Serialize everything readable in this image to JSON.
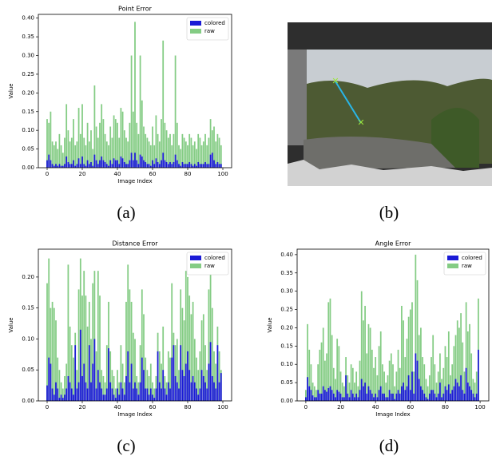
{
  "chart_data": [
    {
      "type": "bar",
      "title": "Point Error",
      "x_label": "Image Index",
      "y_label": "Value",
      "legend": "upper right",
      "x": [
        0,
        1,
        2,
        3,
        4,
        5,
        6,
        7,
        8,
        9,
        10,
        11,
        12,
        13,
        14,
        15,
        16,
        17,
        18,
        19,
        20,
        21,
        22,
        23,
        24,
        25,
        26,
        27,
        28,
        29,
        30,
        31,
        32,
        33,
        34,
        35,
        36,
        37,
        38,
        39,
        40,
        41,
        42,
        43,
        44,
        45,
        46,
        47,
        48,
        49,
        50,
        51,
        52,
        53,
        54,
        55,
        56,
        57,
        58,
        59,
        60,
        61,
        62,
        63,
        64,
        65,
        66,
        67,
        68,
        69,
        70,
        71,
        72,
        73,
        74,
        75,
        76,
        77,
        78,
        79,
        80,
        81,
        82,
        83,
        84,
        85,
        86,
        87,
        88,
        89,
        90,
        91,
        92,
        93,
        94,
        95,
        96,
        97,
        98,
        99
      ],
      "xlim": [
        -5,
        105
      ],
      "xticks": [
        0,
        20,
        40,
        60,
        80,
        100
      ],
      "ylim": [
        0,
        0.41
      ],
      "yticks": [
        {
          "value": 0,
          "label": "0.00"
        },
        {
          "value": 0.05,
          "label": "0.05"
        },
        {
          "value": 0.1,
          "label": "0.10"
        },
        {
          "value": 0.15,
          "label": "0.15"
        },
        {
          "value": 0.2,
          "label": "0.20"
        },
        {
          "value": 0.25,
          "label": "0.25"
        },
        {
          "value": 0.3,
          "label": "0.30"
        },
        {
          "value": 0.35,
          "label": "0.35"
        },
        {
          "value": 0.4,
          "label": "0.40"
        }
      ],
      "series": [
        {
          "name": "colored",
          "color": "#1a1ad6",
          "values": [
            0.02,
            0.035,
            0.02,
            0.01,
            0.005,
            0.01,
            0.005,
            0.01,
            0.005,
            0.005,
            0.01,
            0.03,
            0.015,
            0.01,
            0.01,
            0.02,
            0.005,
            0.01,
            0.025,
            0.01,
            0.03,
            0.01,
            0.005,
            0.02,
            0.01,
            0.015,
            0.005,
            0.035,
            0.02,
            0.01,
            0.02,
            0.03,
            0.02,
            0.015,
            0.01,
            0.005,
            0.02,
            0.01,
            0.025,
            0.02,
            0.02,
            0.01,
            0.03,
            0.025,
            0.015,
            0.01,
            0.01,
            0.02,
            0.04,
            0.02,
            0.04,
            0.02,
            0.01,
            0.035,
            0.03,
            0.02,
            0.015,
            0.01,
            0.01,
            0.005,
            0.02,
            0.01,
            0.025,
            0.015,
            0.01,
            0.02,
            0.04,
            0.02,
            0.015,
            0.01,
            0.015,
            0.01,
            0.015,
            0.035,
            0.02,
            0.01,
            0.005,
            0.015,
            0.01,
            0.01,
            0.01,
            0.015,
            0.01,
            0.005,
            0.01,
            0.005,
            0.015,
            0.01,
            0.01,
            0.01,
            0.015,
            0.01,
            0.01,
            0.035,
            0.04,
            0.02,
            0.01,
            0.015,
            0.01,
            0.01
          ]
        },
        {
          "name": "raw",
          "color": "#84cc84",
          "values": [
            0.13,
            0.12,
            0.15,
            0.07,
            0.06,
            0.07,
            0.05,
            0.09,
            0.06,
            0.04,
            0.08,
            0.17,
            0.1,
            0.07,
            0.08,
            0.13,
            0.06,
            0.07,
            0.16,
            0.09,
            0.17,
            0.08,
            0.06,
            0.12,
            0.07,
            0.1,
            0.05,
            0.22,
            0.11,
            0.08,
            0.12,
            0.17,
            0.13,
            0.09,
            0.07,
            0.06,
            0.11,
            0.08,
            0.14,
            0.13,
            0.12,
            0.08,
            0.16,
            0.15,
            0.1,
            0.08,
            0.07,
            0.12,
            0.3,
            0.15,
            0.39,
            0.12,
            0.09,
            0.3,
            0.18,
            0.11,
            0.09,
            0.08,
            0.07,
            0.06,
            0.11,
            0.06,
            0.14,
            0.09,
            0.07,
            0.13,
            0.34,
            0.12,
            0.1,
            0.08,
            0.09,
            0.06,
            0.09,
            0.3,
            0.12,
            0.06,
            0.05,
            0.09,
            0.08,
            0.07,
            0.06,
            0.09,
            0.08,
            0.06,
            0.07,
            0.05,
            0.09,
            0.08,
            0.06,
            0.07,
            0.09,
            0.06,
            0.08,
            0.13,
            0.1,
            0.11,
            0.07,
            0.09,
            0.08,
            0.06
          ]
        }
      ]
    },
    {
      "type": "bar",
      "title": "Distance Error",
      "x_label": "Image Index",
      "y_label": "Value",
      "legend": "upper right",
      "x": [
        0,
        1,
        2,
        3,
        4,
        5,
        6,
        7,
        8,
        9,
        10,
        11,
        12,
        13,
        14,
        15,
        16,
        17,
        18,
        19,
        20,
        21,
        22,
        23,
        24,
        25,
        26,
        27,
        28,
        29,
        30,
        31,
        32,
        33,
        34,
        35,
        36,
        37,
        38,
        39,
        40,
        41,
        42,
        43,
        44,
        45,
        46,
        47,
        48,
        49,
        50,
        51,
        52,
        53,
        54,
        55,
        56,
        57,
        58,
        59,
        60,
        61,
        62,
        63,
        64,
        65,
        66,
        67,
        68,
        69,
        70,
        71,
        72,
        73,
        74,
        75,
        76,
        77,
        78,
        79,
        80,
        81,
        82,
        83,
        84,
        85,
        86,
        87,
        88,
        89,
        90,
        91,
        92,
        93,
        94,
        95,
        96,
        97,
        98,
        99
      ],
      "xlim": [
        -5,
        105
      ],
      "xticks": [
        0,
        20,
        40,
        60,
        80,
        100
      ],
      "ylim": [
        0,
        0.245
      ],
      "yticks": [
        {
          "value": 0,
          "label": "0.00"
        },
        {
          "value": 0.05,
          "label": "0.05"
        },
        {
          "value": 0.1,
          "label": "0.10"
        },
        {
          "value": 0.15,
          "label": "0.15"
        },
        {
          "value": 0.2,
          "label": "0.20"
        }
      ],
      "series": [
        {
          "name": "colored",
          "color": "#1a1ad6",
          "values": [
            0.025,
            0.07,
            0.06,
            0.02,
            0.01,
            0.03,
            0.02,
            0.005,
            0.01,
            0.005,
            0.01,
            0.02,
            0.04,
            0.03,
            0.02,
            0.01,
            0.09,
            0.02,
            0.03,
            0.115,
            0.04,
            0.06,
            0.03,
            0.02,
            0.09,
            0.03,
            0.06,
            0.1,
            0.02,
            0.05,
            0.03,
            0.02,
            0.01,
            0.01,
            0.02,
            0.085,
            0.03,
            0.02,
            0.01,
            0.005,
            0.02,
            0.01,
            0.03,
            0.02,
            0.01,
            0.04,
            0.08,
            0.03,
            0.06,
            0.02,
            0.03,
            0.02,
            0.01,
            0.03,
            0.07,
            0.05,
            0.02,
            0.02,
            0.01,
            0.02,
            0.01,
            0.005,
            0.02,
            0.08,
            0.03,
            0.02,
            0.05,
            0.02,
            0.01,
            0.03,
            0.02,
            0.07,
            0.09,
            0.04,
            0.03,
            0.02,
            0.09,
            0.05,
            0.04,
            0.06,
            0.08,
            0.05,
            0.03,
            0.04,
            0.03,
            0.02,
            0.01,
            0.02,
            0.05,
            0.04,
            0.03,
            0.02,
            0.06,
            0.095,
            0.04,
            0.03,
            0.02,
            0.09,
            0.03,
            0.045
          ]
        },
        {
          "name": "raw",
          "color": "#84cc84",
          "values": [
            0.19,
            0.23,
            0.15,
            0.16,
            0.15,
            0.13,
            0.07,
            0.05,
            0.03,
            0.02,
            0.04,
            0.06,
            0.22,
            0.12,
            0.09,
            0.07,
            0.11,
            0.05,
            0.18,
            0.23,
            0.17,
            0.21,
            0.17,
            0.12,
            0.16,
            0.1,
            0.19,
            0.21,
            0.08,
            0.21,
            0.17,
            0.05,
            0.04,
            0.03,
            0.09,
            0.16,
            0.08,
            0.05,
            0.04,
            0.02,
            0.05,
            0.03,
            0.09,
            0.06,
            0.03,
            0.16,
            0.22,
            0.18,
            0.16,
            0.11,
            0.1,
            0.04,
            0.03,
            0.09,
            0.18,
            0.14,
            0.07,
            0.05,
            0.04,
            0.06,
            0.03,
            0.02,
            0.04,
            0.11,
            0.08,
            0.06,
            0.12,
            0.04,
            0.03,
            0.08,
            0.07,
            0.19,
            0.11,
            0.09,
            0.1,
            0.05,
            0.18,
            0.15,
            0.13,
            0.21,
            0.2,
            0.17,
            0.14,
            0.16,
            0.1,
            0.07,
            0.05,
            0.08,
            0.13,
            0.14,
            0.09,
            0.05,
            0.18,
            0.22,
            0.15,
            0.08,
            0.06,
            0.12,
            0.08,
            0.05
          ]
        }
      ]
    },
    {
      "type": "bar",
      "title": "Angle Error",
      "x_label": "Image Index",
      "y_label": "Value",
      "legend": "upper right",
      "x": [
        0,
        1,
        2,
        3,
        4,
        5,
        6,
        7,
        8,
        9,
        10,
        11,
        12,
        13,
        14,
        15,
        16,
        17,
        18,
        19,
        20,
        21,
        22,
        23,
        24,
        25,
        26,
        27,
        28,
        29,
        30,
        31,
        32,
        33,
        34,
        35,
        36,
        37,
        38,
        39,
        40,
        41,
        42,
        43,
        44,
        45,
        46,
        47,
        48,
        49,
        50,
        51,
        52,
        53,
        54,
        55,
        56,
        57,
        58,
        59,
        60,
        61,
        62,
        63,
        64,
        65,
        66,
        67,
        68,
        69,
        70,
        71,
        72,
        73,
        74,
        75,
        76,
        77,
        78,
        79,
        80,
        81,
        82,
        83,
        84,
        85,
        86,
        87,
        88,
        89,
        90,
        91,
        92,
        93,
        94,
        95,
        96,
        97,
        98,
        99
      ],
      "xlim": [
        -5,
        105
      ],
      "xticks": [
        0,
        20,
        40,
        60,
        80,
        100
      ],
      "ylim": [
        0,
        0.415
      ],
      "yticks": [
        {
          "value": 0,
          "label": "0.00"
        },
        {
          "value": 0.05,
          "label": "0.05"
        },
        {
          "value": 0.1,
          "label": "0.10"
        },
        {
          "value": 0.15,
          "label": "0.15"
        },
        {
          "value": 0.2,
          "label": "0.20"
        },
        {
          "value": 0.25,
          "label": "0.25"
        },
        {
          "value": 0.3,
          "label": "0.30"
        },
        {
          "value": 0.35,
          "label": "0.35"
        },
        {
          "value": 0.4,
          "label": "0.40"
        }
      ],
      "series": [
        {
          "name": "colored",
          "color": "#1a1ad6",
          "values": [
            0.01,
            0.065,
            0.04,
            0.03,
            0.015,
            0.01,
            0.01,
            0.03,
            0.02,
            0.02,
            0.04,
            0.03,
            0.025,
            0.035,
            0.04,
            0.03,
            0.02,
            0.01,
            0.03,
            0.025,
            0.02,
            0.01,
            0.01,
            0.07,
            0.02,
            0.01,
            0.03,
            0.02,
            0.01,
            0.02,
            0.01,
            0.03,
            0.06,
            0.04,
            0.05,
            0.02,
            0.04,
            0.03,
            0.02,
            0.01,
            0.02,
            0.01,
            0.03,
            0.04,
            0.02,
            0.02,
            0.01,
            0.01,
            0.03,
            0.02,
            0.02,
            0.005,
            0.02,
            0.03,
            0.02,
            0.04,
            0.05,
            0.03,
            0.04,
            0.07,
            0.03,
            0.08,
            0.02,
            0.13,
            0.11,
            0.06,
            0.04,
            0.03,
            0.02,
            0.01,
            0.005,
            0.02,
            0.03,
            0.03,
            0.02,
            0.01,
            0.02,
            0.05,
            0.01,
            0.02,
            0.04,
            0.03,
            0.045,
            0.02,
            0.03,
            0.04,
            0.06,
            0.05,
            0.04,
            0.07,
            0.03,
            0.02,
            0.09,
            0.05,
            0.04,
            0.03,
            0.02,
            0.01,
            0.02,
            0.14
          ]
        },
        {
          "name": "raw",
          "color": "#84cc84",
          "values": [
            0.03,
            0.21,
            0.14,
            0.1,
            0.05,
            0.04,
            0.03,
            0.1,
            0.14,
            0.16,
            0.2,
            0.11,
            0.13,
            0.27,
            0.28,
            0.18,
            0.09,
            0.06,
            0.17,
            0.15,
            0.08,
            0.05,
            0.04,
            0.12,
            0.07,
            0.05,
            0.1,
            0.09,
            0.05,
            0.08,
            0.04,
            0.11,
            0.3,
            0.22,
            0.26,
            0.13,
            0.21,
            0.2,
            0.14,
            0.09,
            0.12,
            0.07,
            0.15,
            0.19,
            0.1,
            0.08,
            0.05,
            0.07,
            0.11,
            0.13,
            0.1,
            0.04,
            0.08,
            0.14,
            0.09,
            0.26,
            0.22,
            0.12,
            0.17,
            0.23,
            0.25,
            0.27,
            0.08,
            0.4,
            0.33,
            0.18,
            0.2,
            0.12,
            0.1,
            0.06,
            0.04,
            0.07,
            0.12,
            0.18,
            0.1,
            0.05,
            0.08,
            0.13,
            0.06,
            0.09,
            0.15,
            0.12,
            0.19,
            0.07,
            0.1,
            0.15,
            0.18,
            0.22,
            0.2,
            0.24,
            0.16,
            0.08,
            0.27,
            0.19,
            0.21,
            0.13,
            0.06,
            0.05,
            0.08,
            0.28
          ]
        }
      ]
    }
  ],
  "captions": [
    "(a)",
    "(b)",
    "(c)",
    "(d)"
  ]
}
